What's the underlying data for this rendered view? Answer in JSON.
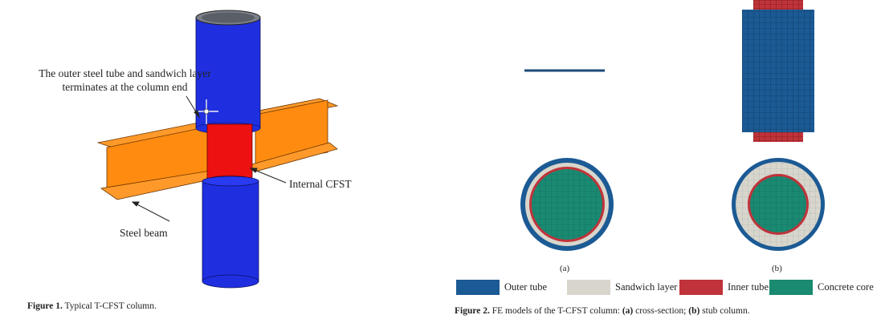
{
  "figure1": {
    "annotations": {
      "outer_tube": "The outer steel tube and sandwich layer terminates at the column end",
      "internal_cfst": "Internal CFST",
      "steel_beam": "Steel beam"
    },
    "caption": {
      "label": "Figure 1.",
      "text": "Typical T-CFST column."
    },
    "colors": {
      "column": "#1f2fe0",
      "cfst": "#ee1111",
      "beam": "#ff8c1a"
    }
  },
  "figure2": {
    "panel_a_label": "(a)",
    "panel_b_label": "(b)",
    "legend": [
      {
        "label": "Outer tube",
        "color": "#1b5a94"
      },
      {
        "label": "Sandwich layer",
        "color": "#d8d6cc"
      },
      {
        "label": "Inner tube",
        "color": "#c0333a"
      },
      {
        "label": "Concrete core",
        "color": "#1a8a70"
      }
    ],
    "caption": {
      "label": "Figure 2.",
      "text_1": "FE models of the T-CFST column: ",
      "a": "(a)",
      "text_2": " cross-section; ",
      "b": "(b)",
      "text_3": " stub column."
    }
  }
}
